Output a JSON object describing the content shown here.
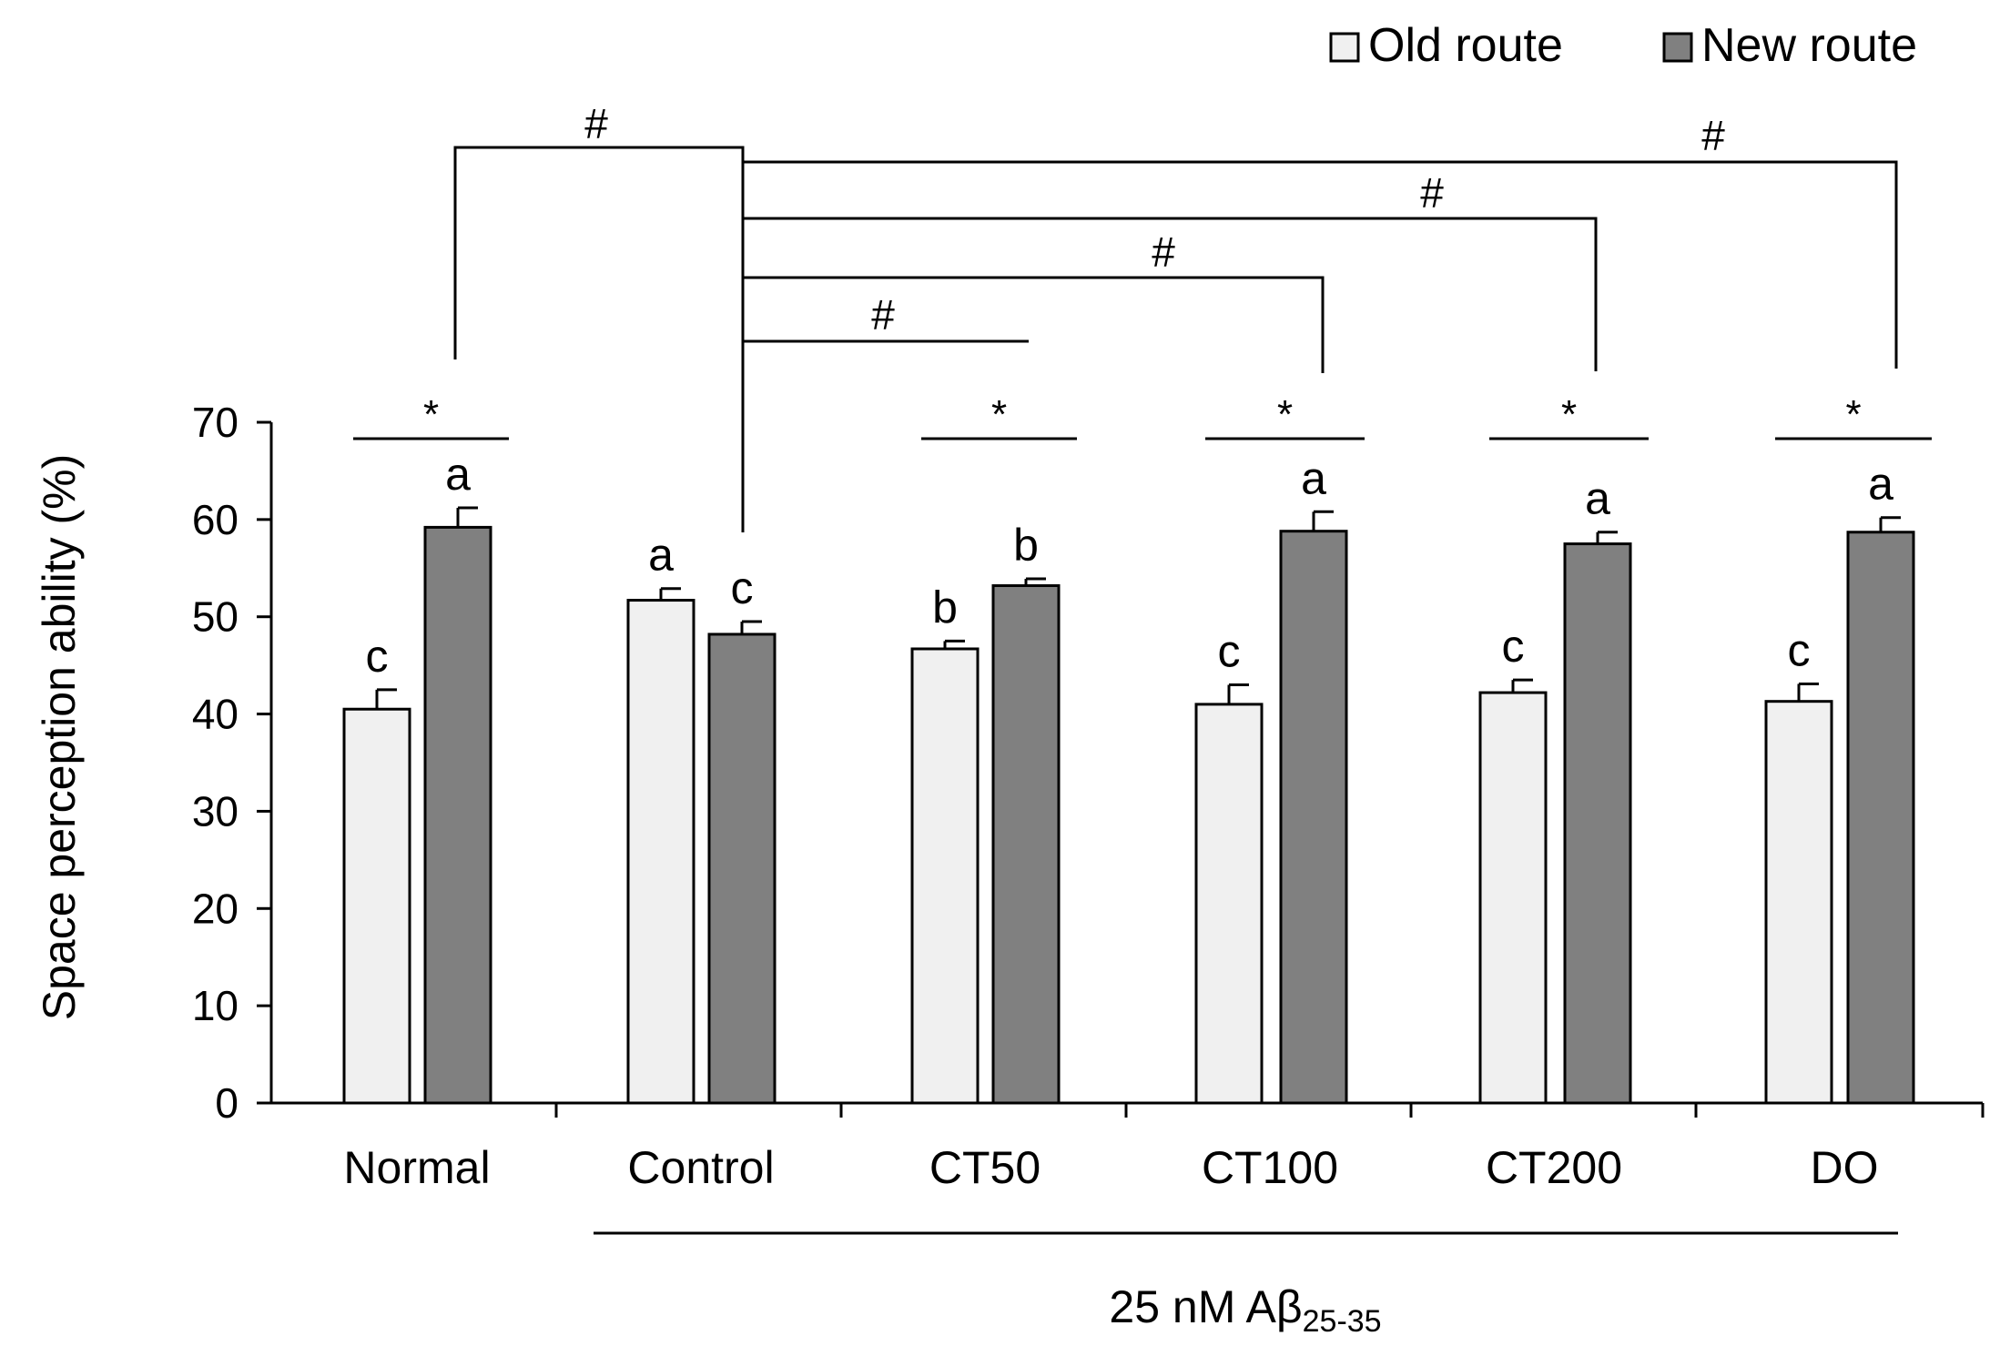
{
  "chart_data": {
    "type": "bar",
    "categories": [
      "Normal",
      "Control",
      "CT50",
      "CT100",
      "CT200",
      "DO"
    ],
    "series": [
      {
        "name": "Old route",
        "color": "#f0f0f0",
        "values": [
          40.5,
          51.7,
          46.7,
          41.0,
          42.2,
          41.3
        ],
        "errors": [
          2.0,
          1.2,
          0.8,
          2.0,
          1.3,
          1.8
        ],
        "letters": [
          "c",
          "a",
          "b",
          "c",
          "c",
          "c"
        ]
      },
      {
        "name": "New route",
        "color": "#808080",
        "values": [
          59.2,
          48.2,
          53.2,
          58.8,
          57.5,
          58.7
        ],
        "errors": [
          2.0,
          1.3,
          0.7,
          2.0,
          1.2,
          1.5
        ],
        "letters": [
          "a",
          "c",
          "b",
          "a",
          "a",
          "a"
        ]
      }
    ],
    "ylabel": "Space perception ability (%)",
    "xlabel": "",
    "ylim": [
      0,
      70
    ],
    "yticks": [
      0,
      10,
      20,
      30,
      40,
      50,
      60,
      70
    ],
    "significance_within": [
      "*",
      "*",
      "*",
      "*",
      "*"
    ],
    "significance_between": [
      "#",
      "#",
      "#",
      "#",
      "#"
    ],
    "group_label": {
      "prefix": "25 nM A",
      "symbol": "β",
      "subscript": "25-35"
    },
    "legend_position": "top-right"
  }
}
